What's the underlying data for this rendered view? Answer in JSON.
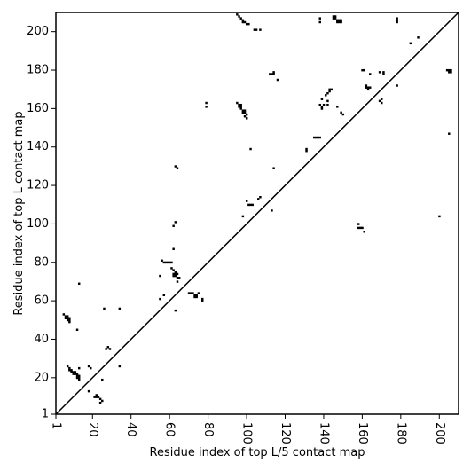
{
  "chart_data": {
    "type": "scatter",
    "xlabel": "Residue index of top L/5 contact map",
    "ylabel": "Residue index of top L contact map",
    "xlim": [
      1,
      210
    ],
    "ylim": [
      1,
      210
    ],
    "xticks": [
      1,
      20,
      40,
      60,
      80,
      100,
      120,
      140,
      160,
      180,
      200
    ],
    "yticks": [
      1,
      20,
      40,
      60,
      80,
      100,
      120,
      140,
      160,
      180,
      200
    ],
    "xtick_rotation": 90,
    "diagonal": true,
    "grid": false,
    "colors": {
      "points": "#000000",
      "diagonal": "#000000",
      "background": "#ffffff"
    },
    "points": [
      [
        5,
        53
      ],
      [
        6,
        52
      ],
      [
        7,
        51
      ],
      [
        7,
        50
      ],
      [
        8,
        51
      ],
      [
        8,
        50
      ],
      [
        8,
        49
      ],
      [
        7,
        52
      ],
      [
        6,
        51
      ],
      [
        7,
        26
      ],
      [
        8,
        25
      ],
      [
        8,
        24
      ],
      [
        9,
        24
      ],
      [
        9,
        23
      ],
      [
        10,
        23
      ],
      [
        10,
        22
      ],
      [
        11,
        22
      ],
      [
        11,
        23
      ],
      [
        12,
        22
      ],
      [
        12,
        21
      ],
      [
        12,
        20
      ],
      [
        13,
        19
      ],
      [
        13,
        20
      ],
      [
        13,
        21
      ],
      [
        13,
        25
      ],
      [
        12,
        45
      ],
      [
        13,
        69
      ],
      [
        18,
        13
      ],
      [
        18,
        26
      ],
      [
        19,
        25
      ],
      [
        21,
        10
      ],
      [
        22,
        10
      ],
      [
        23,
        10
      ],
      [
        22,
        11
      ],
      [
        24,
        9
      ],
      [
        24,
        7
      ],
      [
        25,
        8
      ],
      [
        25,
        19
      ],
      [
        26,
        56
      ],
      [
        27,
        35
      ],
      [
        28,
        36
      ],
      [
        29,
        35
      ],
      [
        34,
        26
      ],
      [
        34,
        56
      ],
      [
        55,
        61
      ],
      [
        55,
        73
      ],
      [
        56,
        81
      ],
      [
        57,
        80
      ],
      [
        57,
        63
      ],
      [
        58,
        80
      ],
      [
        59,
        80
      ],
      [
        60,
        80
      ],
      [
        61,
        80
      ],
      [
        61,
        77
      ],
      [
        62,
        76
      ],
      [
        62,
        74
      ],
      [
        62,
        73
      ],
      [
        63,
        75
      ],
      [
        63,
        74
      ],
      [
        63,
        73
      ],
      [
        64,
        74
      ],
      [
        64,
        72
      ],
      [
        64,
        70
      ],
      [
        65,
        72
      ],
      [
        62,
        87
      ],
      [
        62,
        99
      ],
      [
        63,
        101
      ],
      [
        63,
        55
      ],
      [
        63,
        130
      ],
      [
        64,
        129
      ],
      [
        70,
        64
      ],
      [
        71,
        64
      ],
      [
        72,
        64
      ],
      [
        73,
        63
      ],
      [
        73,
        62
      ],
      [
        74,
        63
      ],
      [
        74,
        62
      ],
      [
        75,
        64
      ],
      [
        77,
        61
      ],
      [
        77,
        60
      ],
      [
        79,
        163
      ],
      [
        79,
        161
      ],
      [
        95,
        209
      ],
      [
        96,
        208
      ],
      [
        97,
        207
      ],
      [
        98,
        206
      ],
      [
        98,
        205
      ],
      [
        99,
        205
      ],
      [
        100,
        204
      ],
      [
        101,
        204
      ],
      [
        104,
        201
      ],
      [
        105,
        201
      ],
      [
        107,
        201
      ],
      [
        95,
        163
      ],
      [
        96,
        162
      ],
      [
        96,
        161
      ],
      [
        97,
        162
      ],
      [
        97,
        161
      ],
      [
        97,
        160
      ],
      [
        98,
        159
      ],
      [
        98,
        158
      ],
      [
        99,
        159
      ],
      [
        99,
        158
      ],
      [
        99,
        156
      ],
      [
        100,
        157
      ],
      [
        100,
        155
      ],
      [
        98,
        104
      ],
      [
        100,
        112
      ],
      [
        101,
        110
      ],
      [
        102,
        110
      ],
      [
        103,
        110
      ],
      [
        102,
        139
      ],
      [
        106,
        113
      ],
      [
        107,
        114
      ],
      [
        112,
        178
      ],
      [
        113,
        178
      ],
      [
        114,
        178
      ],
      [
        114,
        179
      ],
      [
        116,
        175
      ],
      [
        113,
        107
      ],
      [
        114,
        129
      ],
      [
        131,
        139
      ],
      [
        131,
        138
      ],
      [
        135,
        145
      ],
      [
        136,
        145
      ],
      [
        137,
        145
      ],
      [
        138,
        145
      ],
      [
        138,
        162
      ],
      [
        139,
        161
      ],
      [
        139,
        160
      ],
      [
        139,
        165
      ],
      [
        140,
        162
      ],
      [
        141,
        167
      ],
      [
        142,
        168
      ],
      [
        142,
        164
      ],
      [
        142,
        162
      ],
      [
        143,
        170
      ],
      [
        143,
        169
      ],
      [
        144,
        170
      ],
      [
        138,
        207
      ],
      [
        138,
        205
      ],
      [
        145,
        208
      ],
      [
        145,
        207
      ],
      [
        146,
        208
      ],
      [
        146,
        207
      ],
      [
        147,
        206
      ],
      [
        147,
        205
      ],
      [
        148,
        206
      ],
      [
        148,
        205
      ],
      [
        149,
        206
      ],
      [
        149,
        205
      ],
      [
        147,
        161
      ],
      [
        149,
        158
      ],
      [
        150,
        157
      ],
      [
        158,
        100
      ],
      [
        158,
        98
      ],
      [
        159,
        98
      ],
      [
        160,
        98
      ],
      [
        161,
        96
      ],
      [
        160,
        180
      ],
      [
        161,
        180
      ],
      [
        162,
        172
      ],
      [
        162,
        171
      ],
      [
        163,
        171
      ],
      [
        163,
        170
      ],
      [
        164,
        178
      ],
      [
        164,
        171
      ],
      [
        169,
        179
      ],
      [
        169,
        164
      ],
      [
        170,
        163
      ],
      [
        170,
        165
      ],
      [
        171,
        179
      ],
      [
        171,
        178
      ],
      [
        178,
        172
      ],
      [
        178,
        207
      ],
      [
        178,
        206
      ],
      [
        178,
        205
      ],
      [
        185,
        194
      ],
      [
        189,
        197
      ],
      [
        200,
        104
      ],
      [
        204,
        180
      ],
      [
        205,
        180
      ],
      [
        206,
        180
      ],
      [
        205,
        179
      ],
      [
        206,
        179
      ],
      [
        205,
        147
      ]
    ]
  }
}
